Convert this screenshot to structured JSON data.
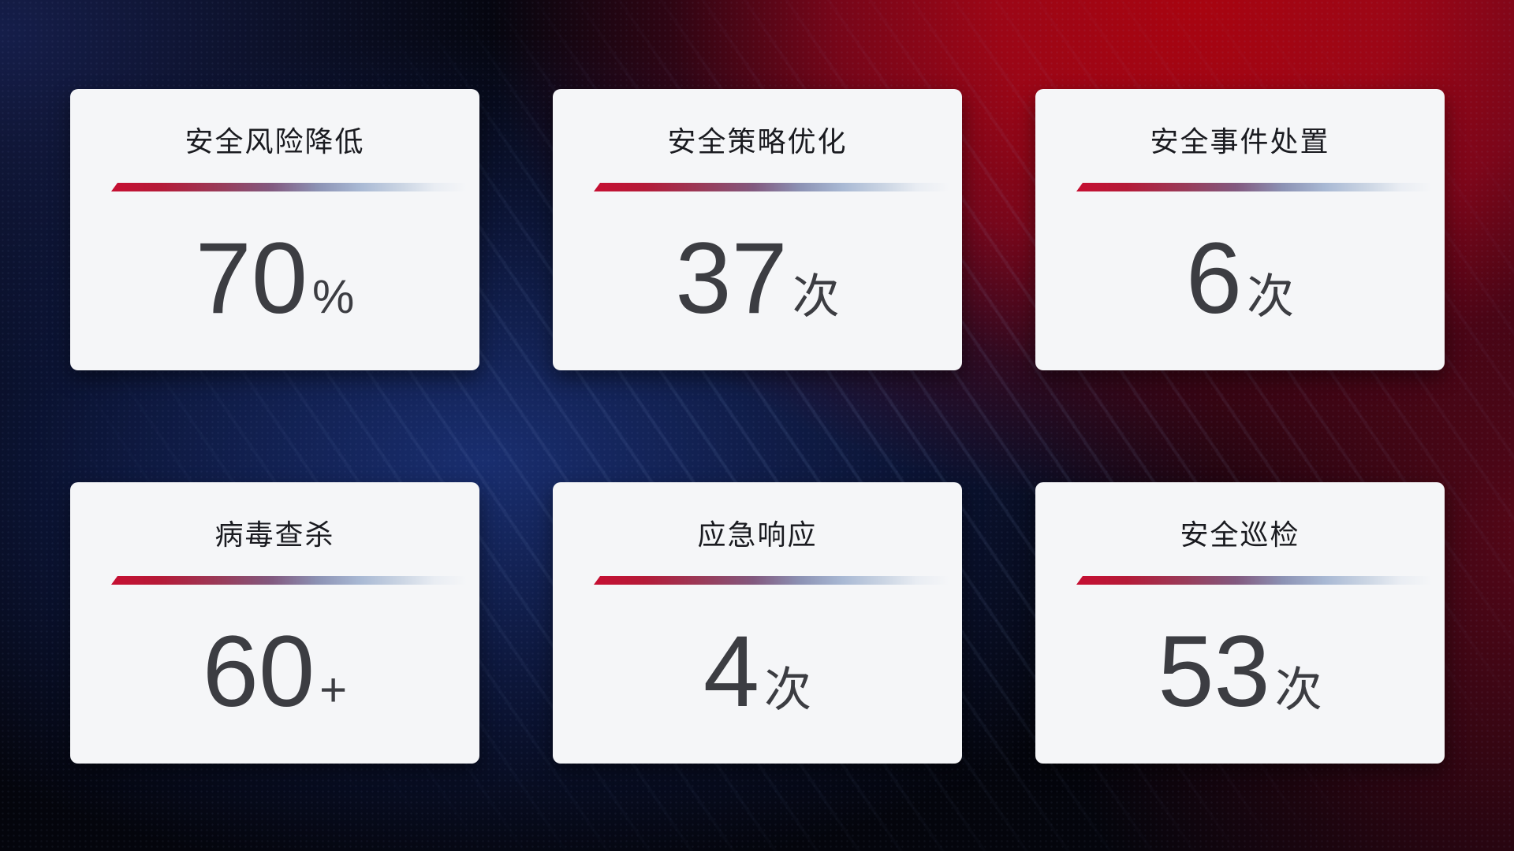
{
  "theme": {
    "card_bg": "#f5f6f8",
    "title_color": "#1a1b20",
    "value_color": "#3c3d42",
    "red_glow": "#a80410",
    "divider_red": "#c60f32",
    "divider_purple": "#82597f",
    "divider_blue": "#a9b9d4",
    "divider_light": "#e9edf3"
  },
  "cards": [
    {
      "title": "安全风险降低",
      "value": "70",
      "suffix": "%"
    },
    {
      "title": "安全策略优化",
      "value": "37",
      "suffix": "次"
    },
    {
      "title": "安全事件处置",
      "value": "6",
      "suffix": "次"
    },
    {
      "title": "病毒查杀",
      "value": "60",
      "suffix": "+"
    },
    {
      "title": "应急响应",
      "value": "4",
      "suffix": "次"
    },
    {
      "title": "安全巡检",
      "value": "53",
      "suffix": "次"
    }
  ]
}
